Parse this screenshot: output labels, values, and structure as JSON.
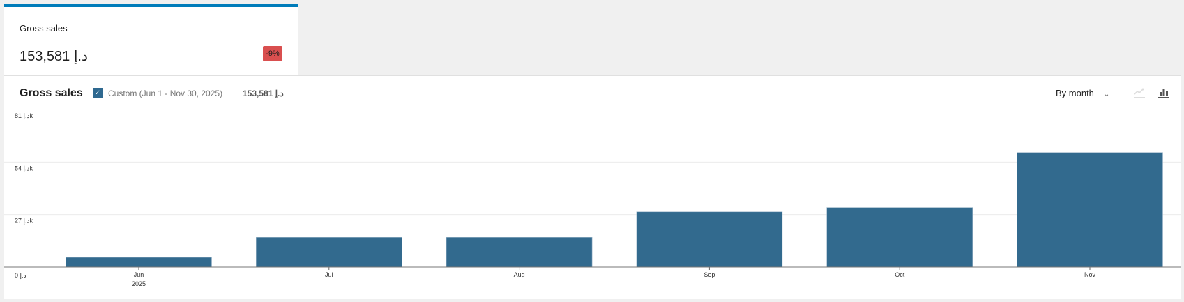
{
  "summary": {
    "label": "Gross sales",
    "value": "153,581 د.إ",
    "delta": "-9%",
    "delta_color": "#d94f4f",
    "accent_color": "#007cba"
  },
  "chart_header": {
    "title": "Gross sales",
    "legend_label": "Custom (Jun 1 - Nov 30, 2025)",
    "legend_total": "153,581 د.إ",
    "interval": "By month",
    "chevron_icon": "chevron-down-icon",
    "line_chart_icon": "line-chart-icon",
    "bar_chart_icon": "bar-chart-icon",
    "selected_chart_type": "bar"
  },
  "chart_data": {
    "type": "bar",
    "categories": [
      "Jun",
      "Jul",
      "Aug",
      "Sep",
      "Oct",
      "Nov"
    ],
    "year_label": "2025",
    "values": [
      5000,
      15300,
      15300,
      28400,
      30600,
      58900
    ],
    "y_ticks": [
      {
        "value": 0,
        "label": "0 د.إ"
      },
      {
        "value": 27000,
        "label": "27 د.إk"
      },
      {
        "value": 54000,
        "label": "54 د.إk"
      },
      {
        "value": 81000,
        "label": "81 د.إk"
      }
    ],
    "ylim": [
      0,
      81000
    ],
    "grid": true,
    "bar_color": "#326a8e"
  }
}
